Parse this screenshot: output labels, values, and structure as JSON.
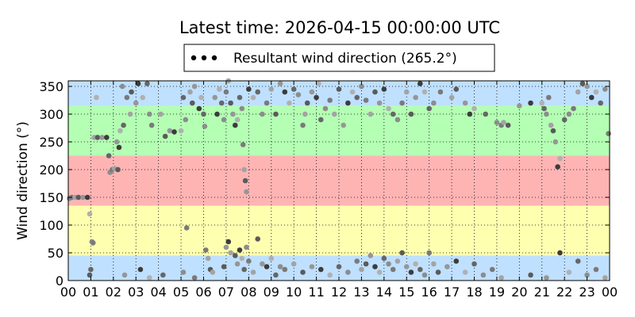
{
  "chart_data": {
    "type": "scatter",
    "title": "Latest time: 2026-04-15 00:00:00 UTC",
    "ylabel": "Wind direction (°)",
    "xlabel": "",
    "xlim": [
      0,
      24
    ],
    "ylim": [
      0,
      360
    ],
    "x_tick_labels": [
      "00",
      "01",
      "02",
      "03",
      "04",
      "05",
      "06",
      "07",
      "08",
      "09",
      "10",
      "11",
      "12",
      "13",
      "14",
      "15",
      "16",
      "17",
      "18",
      "19",
      "20",
      "21",
      "22",
      "23",
      "00"
    ],
    "y_ticks": [
      0,
      50,
      100,
      150,
      200,
      250,
      300,
      350
    ],
    "grid": true,
    "legend": {
      "placement": "top-center",
      "label": "Resultant wind direction (265.2°)"
    },
    "bands": [
      {
        "from": 0,
        "to": 45,
        "color": "#bfe0ff"
      },
      {
        "from": 45,
        "to": 135,
        "color": "#ffffb0"
      },
      {
        "from": 135,
        "to": 225,
        "color": "#ffb4b4"
      },
      {
        "from": 225,
        "to": 315,
        "color": "#b4ffb4"
      },
      {
        "from": 315,
        "to": 360,
        "color": "#bfe0ff"
      }
    ],
    "series": [
      {
        "points": [
          [
            0.05,
            148
          ],
          [
            0.15,
            150
          ],
          [
            0.3,
            150
          ],
          [
            0.45,
            150
          ],
          [
            0.65,
            150
          ],
          [
            0.85,
            150
          ],
          [
            0.95,
            120
          ],
          [
            1.0,
            20
          ],
          [
            1.05,
            70
          ],
          [
            1.1,
            68
          ],
          [
            1.15,
            258
          ],
          [
            1.3,
            258
          ],
          [
            1.5,
            258
          ],
          [
            1.7,
            258
          ],
          [
            1.25,
            330
          ],
          [
            1.8,
            225
          ],
          [
            1.85,
            195
          ],
          [
            1.95,
            200
          ],
          [
            2.05,
            202
          ],
          [
            2.2,
            200
          ],
          [
            2.15,
            250
          ],
          [
            2.25,
            240
          ],
          [
            2.3,
            270
          ],
          [
            2.45,
            280
          ],
          [
            2.4,
            350
          ],
          [
            2.6,
            330
          ],
          [
            2.75,
            300
          ],
          [
            2.8,
            340
          ],
          [
            3.0,
            320
          ],
          [
            3.1,
            355
          ],
          [
            3.3,
            330
          ],
          [
            3.5,
            355
          ],
          [
            3.6,
            300
          ],
          [
            3.7,
            280
          ],
          [
            4.1,
            300
          ],
          [
            4.3,
            260
          ],
          [
            4.5,
            270
          ],
          [
            4.7,
            268
          ],
          [
            5.0,
            270
          ],
          [
            5.1,
            330
          ],
          [
            5.2,
            290
          ],
          [
            5.25,
            95
          ],
          [
            5.4,
            340
          ],
          [
            5.5,
            320
          ],
          [
            5.6,
            350
          ],
          [
            5.8,
            310
          ],
          [
            5.9,
            330
          ],
          [
            6.0,
            300
          ],
          [
            6.05,
            278
          ],
          [
            6.1,
            55
          ],
          [
            6.2,
            40
          ],
          [
            6.3,
            20
          ],
          [
            6.5,
            330
          ],
          [
            6.6,
            300
          ],
          [
            6.7,
            345
          ],
          [
            6.8,
            320
          ],
          [
            6.9,
            290
          ],
          [
            7.0,
            340
          ],
          [
            7.1,
            360
          ],
          [
            7.2,
            320
          ],
          [
            7.3,
            300
          ],
          [
            7.4,
            280
          ],
          [
            7.5,
            290
          ],
          [
            7.6,
            330
          ],
          [
            7.7,
            310
          ],
          [
            7.75,
            245
          ],
          [
            7.8,
            200
          ],
          [
            7.85,
            180
          ],
          [
            7.9,
            160
          ],
          [
            8.0,
            345
          ],
          [
            8.2,
            330
          ],
          [
            8.4,
            340
          ],
          [
            8.6,
            300
          ],
          [
            8.8,
            320
          ],
          [
            9.0,
            345
          ],
          [
            9.2,
            300
          ],
          [
            9.4,
            355
          ],
          [
            9.6,
            340
          ],
          [
            9.8,
            320
          ],
          [
            10.0,
            345
          ],
          [
            10.2,
            335
          ],
          [
            10.4,
            280
          ],
          [
            10.5,
            300
          ],
          [
            10.6,
            320
          ],
          [
            10.8,
            340
          ],
          [
            11.0,
            330
          ],
          [
            11.1,
            355
          ],
          [
            11.2,
            290
          ],
          [
            11.4,
            310
          ],
          [
            11.6,
            325
          ],
          [
            11.8,
            300
          ],
          [
            12.0,
            345
          ],
          [
            12.2,
            280
          ],
          [
            12.4,
            320
          ],
          [
            12.6,
            340
          ],
          [
            12.8,
            330
          ],
          [
            13.0,
            350
          ],
          [
            13.2,
            325
          ],
          [
            13.4,
            300
          ],
          [
            13.6,
            340
          ],
          [
            13.8,
            320
          ],
          [
            14.0,
            345
          ],
          [
            14.2,
            310
          ],
          [
            14.4,
            300
          ],
          [
            14.6,
            290
          ],
          [
            14.8,
            320
          ],
          [
            15.0,
            340
          ],
          [
            15.2,
            300
          ],
          [
            15.4,
            330
          ],
          [
            15.6,
            355
          ],
          [
            15.8,
            340
          ],
          [
            16.0,
            310
          ],
          [
            16.2,
            320
          ],
          [
            16.5,
            340
          ],
          [
            17.0,
            330
          ],
          [
            17.2,
            345
          ],
          [
            17.6,
            320
          ],
          [
            17.8,
            300
          ],
          [
            18.0,
            310
          ],
          [
            18.5,
            300
          ],
          [
            19.0,
            285
          ],
          [
            19.2,
            280
          ],
          [
            19.3,
            285
          ],
          [
            19.5,
            280
          ],
          [
            20.0,
            315
          ],
          [
            20.5,
            320
          ],
          [
            21.0,
            320
          ],
          [
            21.1,
            310
          ],
          [
            21.2,
            300
          ],
          [
            21.3,
            330
          ],
          [
            21.4,
            280
          ],
          [
            21.5,
            270
          ],
          [
            21.6,
            250
          ],
          [
            21.7,
            205
          ],
          [
            21.8,
            220
          ],
          [
            22.0,
            290
          ],
          [
            22.2,
            300
          ],
          [
            22.4,
            310
          ],
          [
            22.6,
            340
          ],
          [
            22.8,
            355
          ],
          [
            23.0,
            350
          ],
          [
            23.2,
            330
          ],
          [
            23.4,
            340
          ],
          [
            23.6,
            320
          ],
          [
            23.8,
            345
          ],
          [
            23.95,
            265
          ],
          [
            7.2,
            50
          ],
          [
            7.4,
            45
          ],
          [
            7.5,
            30
          ],
          [
            7.6,
            55
          ],
          [
            7.7,
            40
          ],
          [
            7.8,
            20
          ],
          [
            7.9,
            60
          ],
          [
            8.0,
            35
          ],
          [
            8.2,
            15
          ],
          [
            8.4,
            75
          ],
          [
            8.6,
            30
          ],
          [
            8.8,
            25
          ],
          [
            9.0,
            40
          ],
          [
            9.2,
            10
          ],
          [
            9.4,
            25
          ],
          [
            9.6,
            20
          ],
          [
            10.0,
            30
          ],
          [
            10.4,
            15
          ],
          [
            10.8,
            25
          ],
          [
            11.2,
            20
          ],
          [
            11.6,
            10
          ],
          [
            12.0,
            25
          ],
          [
            12.4,
            15
          ],
          [
            12.8,
            35
          ],
          [
            13.0,
            20
          ],
          [
            13.2,
            30
          ],
          [
            13.4,
            45
          ],
          [
            13.6,
            25
          ],
          [
            13.8,
            15
          ],
          [
            14.0,
            40
          ],
          [
            14.2,
            30
          ],
          [
            14.4,
            20
          ],
          [
            14.6,
            35
          ],
          [
            14.8,
            50
          ],
          [
            15.0,
            25
          ],
          [
            15.2,
            15
          ],
          [
            15.4,
            30
          ],
          [
            15.6,
            20
          ],
          [
            15.8,
            10
          ],
          [
            16.0,
            50
          ],
          [
            16.2,
            30
          ],
          [
            16.4,
            15
          ],
          [
            16.8,
            25
          ],
          [
            17.2,
            35
          ],
          [
            17.6,
            15
          ],
          [
            18.0,
            30
          ],
          [
            18.4,
            10
          ],
          [
            18.8,
            20
          ],
          [
            19.2,
            5
          ],
          [
            20.5,
            10
          ],
          [
            21.2,
            5
          ],
          [
            21.8,
            50
          ],
          [
            22.2,
            15
          ],
          [
            22.6,
            35
          ],
          [
            23.0,
            10
          ],
          [
            23.4,
            20
          ],
          [
            23.8,
            5
          ],
          [
            0.95,
            10
          ],
          [
            2.5,
            10
          ],
          [
            3.2,
            20
          ],
          [
            3.6,
            5
          ],
          [
            4.2,
            10
          ],
          [
            5.1,
            15
          ],
          [
            5.6,
            5
          ],
          [
            6.4,
            15
          ],
          [
            6.9,
            25
          ],
          [
            7.0,
            60
          ],
          [
            7.1,
            70
          ]
        ]
      }
    ]
  }
}
